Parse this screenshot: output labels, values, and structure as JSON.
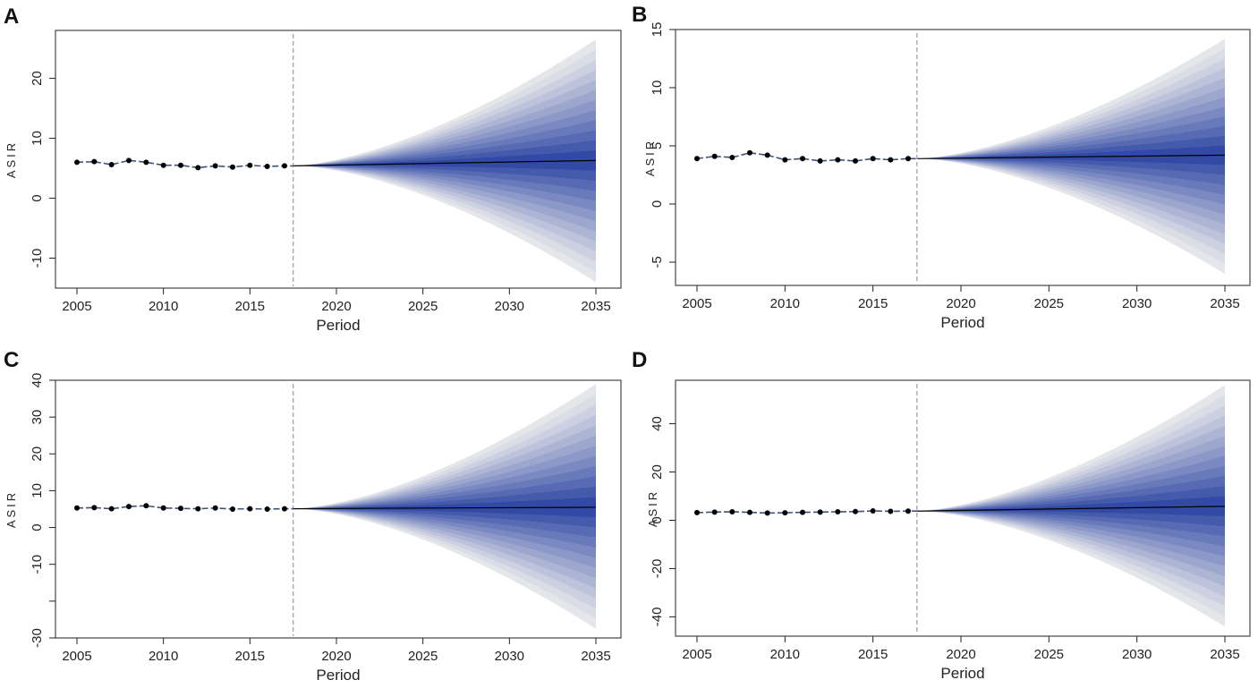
{
  "colors": {
    "fan_light": "#e5e6ea",
    "fan_dark": "#1f3a9e",
    "line": "#000000",
    "observed_line": "#3e507c",
    "divider": "#9a9a9a",
    "axis": "#222222"
  },
  "chart_data": [
    {
      "type": "line",
      "panel": "A",
      "title": "",
      "xlabel": "Period",
      "ylabel": "ASIR",
      "xlim": [
        2005,
        2035
      ],
      "ylim": [
        -15,
        28
      ],
      "x_ticks": [
        2005,
        2010,
        2015,
        2020,
        2025,
        2030,
        2035
      ],
      "y_ticks": [
        -10,
        0,
        10,
        20
      ],
      "y_tick_labels": [
        "-10",
        "0",
        "10",
        "20"
      ],
      "projection_start": 2017.5,
      "observed": {
        "x": [
          2005,
          2006,
          2007,
          2008,
          2009,
          2010,
          2011,
          2012,
          2013,
          2014,
          2015,
          2016,
          2017
        ],
        "y": [
          6.0,
          6.1,
          5.6,
          6.3,
          6.0,
          5.5,
          5.5,
          5.1,
          5.4,
          5.2,
          5.5,
          5.3,
          5.4
        ]
      },
      "forecast": {
        "x": [
          2017.5,
          2035
        ],
        "median": [
          5.4,
          6.3
        ],
        "upper_outer": 26.5,
        "lower_outer": -14.0
      }
    },
    {
      "type": "line",
      "panel": "B",
      "title": "",
      "xlabel": "Period",
      "ylabel": "ASIR",
      "xlim": [
        2005,
        2035
      ],
      "ylim": [
        -7,
        15
      ],
      "x_ticks": [
        2005,
        2010,
        2015,
        2020,
        2025,
        2030,
        2035
      ],
      "y_ticks": [
        -5,
        0,
        5,
        10,
        15
      ],
      "y_tick_labels": [
        "-5",
        "0",
        "5",
        "10",
        "15"
      ],
      "projection_start": 2017.5,
      "observed": {
        "x": [
          2005,
          2006,
          2007,
          2008,
          2009,
          2010,
          2011,
          2012,
          2013,
          2014,
          2015,
          2016,
          2017
        ],
        "y": [
          3.9,
          4.1,
          4.0,
          4.4,
          4.2,
          3.8,
          3.9,
          3.7,
          3.8,
          3.7,
          3.9,
          3.8,
          3.9
        ]
      },
      "forecast": {
        "x": [
          2017.5,
          2035
        ],
        "median": [
          3.9,
          4.2
        ],
        "upper_outer": 14.2,
        "lower_outer": -6.0
      }
    },
    {
      "type": "line",
      "panel": "C",
      "title": "",
      "xlabel": "Period",
      "ylabel": "ASIR",
      "xlim": [
        2005,
        2035
      ],
      "ylim": [
        -30,
        40
      ],
      "x_ticks": [
        2005,
        2010,
        2015,
        2020,
        2025,
        2030,
        2035
      ],
      "y_ticks": [
        -30,
        -20,
        -10,
        0,
        10,
        20,
        30,
        40
      ],
      "y_tick_labels": [
        "-30",
        "",
        "-10",
        "0",
        "10",
        "20",
        "30",
        "40"
      ],
      "projection_start": 2017.5,
      "observed": {
        "x": [
          2005,
          2006,
          2007,
          2008,
          2009,
          2010,
          2011,
          2012,
          2013,
          2014,
          2015,
          2016,
          2017
        ],
        "y": [
          5.3,
          5.4,
          5.1,
          5.7,
          5.9,
          5.3,
          5.2,
          5.1,
          5.3,
          5.0,
          5.1,
          5.0,
          5.1
        ]
      },
      "forecast": {
        "x": [
          2017.5,
          2035
        ],
        "median": [
          5.1,
          5.5
        ],
        "upper_outer": 39.0,
        "lower_outer": -27.5
      }
    },
    {
      "type": "line",
      "panel": "D",
      "title": "",
      "xlabel": "Period",
      "ylabel": "ASIR",
      "xlim": [
        2005,
        2035
      ],
      "ylim": [
        -48,
        58
      ],
      "x_ticks": [
        2005,
        2010,
        2015,
        2020,
        2025,
        2030,
        2035
      ],
      "y_ticks": [
        -40,
        -20,
        0,
        20,
        40
      ],
      "y_tick_labels": [
        "-40",
        "-20",
        "0",
        "20",
        "40"
      ],
      "projection_start": 2017.5,
      "observed": {
        "x": [
          2005,
          2006,
          2007,
          2008,
          2009,
          2010,
          2011,
          2012,
          2013,
          2014,
          2015,
          2016,
          2017
        ],
        "y": [
          3.2,
          3.4,
          3.5,
          3.3,
          3.0,
          3.1,
          3.3,
          3.4,
          3.5,
          3.6,
          3.9,
          3.7,
          3.8
        ]
      },
      "forecast": {
        "x": [
          2017.5,
          2035
        ],
        "median": [
          3.8,
          5.8
        ],
        "upper_outer": 56.0,
        "lower_outer": -44.0
      }
    }
  ]
}
